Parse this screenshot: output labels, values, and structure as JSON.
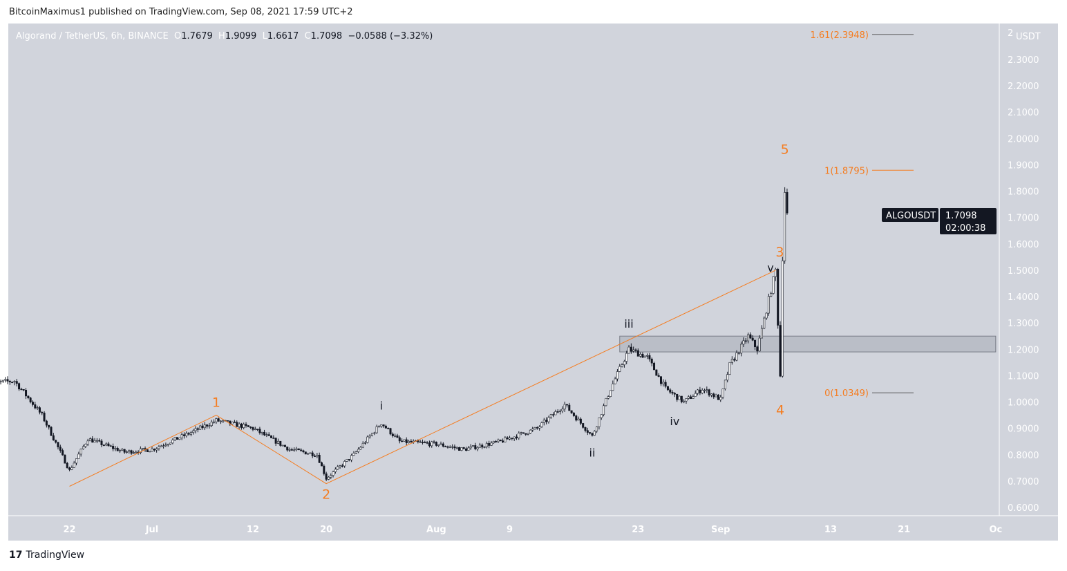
{
  "header": {
    "published": "BitcoinMaximus1 published on TradingView.com, Sep 08, 2021 17:59 UTC+2"
  },
  "legend": {
    "symbol": "Algorand / TetherUS, 6h, BINANCE",
    "o_label": "O",
    "o": "1.7679",
    "h_label": "H",
    "h": "1.9099",
    "l_label": "L",
    "l": "1.6617",
    "c_label": "C",
    "c": "1.7098",
    "change": "−0.0588 (−3.32%)"
  },
  "price_tag": {
    "symbol": "ALGOUSDT",
    "price": "1.7098",
    "countdown": "02:00:38"
  },
  "brand": "TradingView",
  "chart_data": {
    "type": "candlestick",
    "symbol": "ALGOUSDT",
    "interval": "6h",
    "currency": "USDT",
    "ylim": [
      0.55,
      2.42
    ],
    "y_ticks": [
      "0.6000",
      "0.7000",
      "0.8000",
      "0.9000",
      "1.0000",
      "1.1000",
      "1.2000",
      "1.3000",
      "1.4000",
      "1.5000",
      "1.6000",
      "1.7000",
      "1.8000",
      "1.9000",
      "2.0000",
      "2.1000",
      "2.2000",
      "2.3000"
    ],
    "y_unit_label": "USDT",
    "y_top_label": "2",
    "x_ticks": [
      {
        "label": "22",
        "date": "2021-06-22"
      },
      {
        "label": "Jul",
        "date": "2021-07-01"
      },
      {
        "label": "12",
        "date": "2021-07-12"
      },
      {
        "label": "20",
        "date": "2021-07-20"
      },
      {
        "label": "Aug",
        "date": "2021-08-01"
      },
      {
        "label": "9",
        "date": "2021-08-09"
      },
      {
        "label": "23",
        "date": "2021-08-23"
      },
      {
        "label": "Sep",
        "date": "2021-09-01"
      },
      {
        "label": "13",
        "date": "2021-09-13"
      },
      {
        "label": "21",
        "date": "2021-09-21"
      },
      {
        "label": "Oc",
        "date": "2021-10-01"
      }
    ],
    "price_path": [
      [
        "2021-06-13",
        1.07
      ],
      [
        "2021-06-16",
        1.08
      ],
      [
        "2021-06-19",
        0.95
      ],
      [
        "2021-06-22",
        0.74
      ],
      [
        "2021-06-24",
        0.86
      ],
      [
        "2021-06-28",
        0.81
      ],
      [
        "2021-07-01",
        0.82
      ],
      [
        "2021-07-05",
        0.88
      ],
      [
        "2021-07-08",
        0.93
      ],
      [
        "2021-07-12",
        0.9
      ],
      [
        "2021-07-16",
        0.82
      ],
      [
        "2021-07-19",
        0.8
      ],
      [
        "2021-07-20",
        0.71
      ],
      [
        "2021-07-23",
        0.8
      ],
      [
        "2021-07-26",
        0.92
      ],
      [
        "2021-07-28",
        0.85
      ],
      [
        "2021-08-01",
        0.84
      ],
      [
        "2021-08-04",
        0.82
      ],
      [
        "2021-08-08",
        0.85
      ],
      [
        "2021-08-12",
        0.9
      ],
      [
        "2021-08-15",
        0.99
      ],
      [
        "2021-08-18",
        0.87
      ],
      [
        "2021-08-20",
        1.05
      ],
      [
        "2021-08-22",
        1.2
      ],
      [
        "2021-08-24",
        1.17
      ],
      [
        "2021-08-26",
        1.05
      ],
      [
        "2021-08-28",
        1.0
      ],
      [
        "2021-08-30",
        1.05
      ],
      [
        "2021-09-01",
        1.01
      ],
      [
        "2021-09-02",
        1.14
      ],
      [
        "2021-09-04",
        1.25
      ],
      [
        "2021-09-05",
        1.2
      ],
      [
        "2021-09-06",
        1.35
      ],
      [
        "2021-09-07",
        1.5
      ],
      [
        "2021-09-07T12",
        1.1
      ],
      [
        "2021-09-07T18",
        1.55
      ],
      [
        "2021-09-08",
        1.8
      ],
      [
        "2021-09-08T06",
        1.7098
      ]
    ],
    "wave_labels": [
      {
        "text": "1",
        "date": "2021-07-08",
        "price": 0.95,
        "color": "#f57c1f"
      },
      {
        "text": "2",
        "date": "2021-07-20",
        "price": 0.69,
        "color": "#f57c1f"
      },
      {
        "text": "3",
        "date": "2021-09-07",
        "price": 1.5,
        "color": "#f57c1f"
      },
      {
        "text": "4",
        "date": "2021-09-07T12",
        "price": 1.01,
        "color": "#f57c1f"
      },
      {
        "text": "5",
        "date": "2021-09-08",
        "price": 1.91,
        "color": "#f57c1f"
      },
      {
        "text": "i",
        "date": "2021-07-26",
        "price": 0.94,
        "color": "#131722"
      },
      {
        "text": "ii",
        "date": "2021-08-18",
        "price": 0.85,
        "color": "#131722"
      },
      {
        "text": "iii",
        "date": "2021-08-22",
        "price": 1.25,
        "color": "#131722"
      },
      {
        "text": "iv",
        "date": "2021-08-27",
        "price": 0.97,
        "color": "#131722"
      },
      {
        "text": "v",
        "date": "2021-09-06T18",
        "price": 1.51,
        "color": "#131722"
      }
    ],
    "wave_lines": [
      [
        "2021-06-22",
        0.68
      ],
      [
        "2021-07-08",
        0.95
      ],
      [
        "2021-07-20",
        0.69
      ],
      [
        "2021-09-07",
        1.5
      ]
    ],
    "fib_levels": [
      {
        "label": "1.61(2.3948)",
        "price": 2.3948
      },
      {
        "label": "1(1.8795)",
        "price": 1.8795
      },
      {
        "label": "0(1.0349)",
        "price": 1.0349
      }
    ],
    "zone": {
      "from": "2021-08-21",
      "to": "2021-10-01",
      "low": 1.19,
      "high": 1.25
    },
    "colors": {
      "up": "#ffffff",
      "down": "#131722",
      "wave": "#f57c1f",
      "bg": "#d1d4dc"
    }
  }
}
